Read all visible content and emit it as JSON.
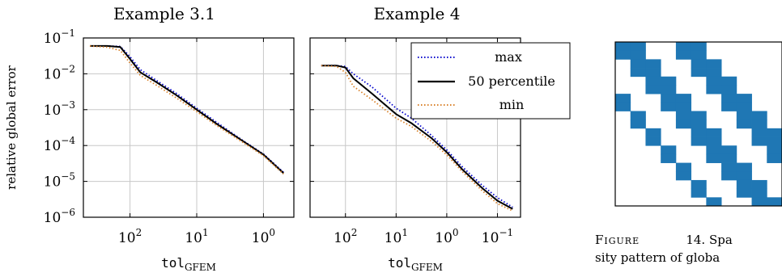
{
  "chart_data": [
    {
      "type": "line",
      "title": "Example 3.1",
      "xlabel": "tol",
      "xlabel_sub": "GFEM",
      "ylabel": "relative global error",
      "x_scale": "log",
      "x_reversed": true,
      "y_scale": "log",
      "xlim": [
        500,
        0.35
      ],
      "ylim": [
        1e-06,
        0.1
      ],
      "x_ticks": [
        {
          "value": 100,
          "base": "10",
          "exp": "2"
        },
        {
          "value": 10,
          "base": "10",
          "exp": "1"
        },
        {
          "value": 1,
          "base": "10",
          "exp": "0"
        }
      ],
      "y_ticks": [
        {
          "value": 0.1,
          "base": "10",
          "exp": "−1"
        },
        {
          "value": 0.01,
          "base": "10",
          "exp": "−2"
        },
        {
          "value": 0.001,
          "base": "10",
          "exp": "−3"
        },
        {
          "value": 0.0001,
          "base": "10",
          "exp": "−4"
        },
        {
          "value": 1e-05,
          "base": "10",
          "exp": "−5"
        },
        {
          "value": 1e-06,
          "base": "10",
          "exp": "−6"
        }
      ],
      "grid": true,
      "series": [
        {
          "name": "max",
          "color": "#0000cc",
          "style": "dotted",
          "x": [
            400,
            220,
            140,
            100,
            70,
            40,
            20,
            10,
            5,
            2,
            1,
            0.5
          ],
          "y": [
            0.06,
            0.06,
            0.058,
            0.03,
            0.013,
            0.0065,
            0.0028,
            0.0011,
            0.00044,
            0.000135,
            5.8e-05,
            1.8e-05
          ]
        },
        {
          "name": "50 percentile",
          "color": "#000000",
          "style": "solid",
          "x": [
            400,
            220,
            140,
            100,
            70,
            40,
            20,
            10,
            5,
            2,
            1,
            0.5
          ],
          "y": [
            0.06,
            0.06,
            0.056,
            0.026,
            0.011,
            0.0058,
            0.0025,
            0.001,
            0.0004,
            0.00013,
            5.6e-05,
            1.7e-05
          ]
        },
        {
          "name": "min",
          "color": "#d9822b",
          "style": "dotted",
          "x": [
            400,
            220,
            140,
            100,
            70,
            40,
            20,
            10,
            5,
            2,
            1,
            0.5
          ],
          "y": [
            0.06,
            0.055,
            0.045,
            0.02,
            0.009,
            0.0048,
            0.0021,
            0.00088,
            0.00036,
            0.00012,
            5.2e-05,
            1.6e-05
          ]
        }
      ]
    },
    {
      "type": "line",
      "title": "Example 4",
      "xlabel": "tol",
      "xlabel_sub": "GFEM",
      "x_scale": "log",
      "x_reversed": true,
      "y_scale": "log",
      "xlim": [
        500,
        0.035
      ],
      "ylim": [
        1e-06,
        0.1
      ],
      "x_ticks": [
        {
          "value": 100,
          "base": "10",
          "exp": "2"
        },
        {
          "value": 10,
          "base": "10",
          "exp": "1"
        },
        {
          "value": 1,
          "base": "10",
          "exp": "0"
        },
        {
          "value": 0.1,
          "base": "10",
          "exp": "−1"
        }
      ],
      "grid": true,
      "legend": {
        "position": "top-right",
        "entries": [
          "max",
          "50 percentile",
          "min"
        ]
      },
      "series": [
        {
          "name": "max",
          "color": "#0000cc",
          "style": "dotted",
          "x": [
            300,
            150,
            100,
            70,
            30,
            10,
            5,
            2,
            1,
            0.5,
            0.2,
            0.1,
            0.05
          ],
          "y": [
            0.017,
            0.017,
            0.016,
            0.01,
            0.0043,
            0.0011,
            0.00058,
            0.00019,
            7.5e-05,
            2.6e-05,
            7.8e-06,
            3.5e-06,
            1.9e-06
          ]
        },
        {
          "name": "50 percentile",
          "color": "#000000",
          "style": "solid",
          "x": [
            300,
            150,
            100,
            70,
            30,
            10,
            5,
            2,
            1,
            0.5,
            0.2,
            0.1,
            0.05
          ],
          "y": [
            0.017,
            0.017,
            0.015,
            0.0075,
            0.0028,
            0.00075,
            0.00042,
            0.00016,
            6.5e-05,
            2.2e-05,
            6.5e-06,
            2.9e-06,
            1.7e-06
          ]
        },
        {
          "name": "min",
          "color": "#d9822b",
          "style": "dotted",
          "x": [
            300,
            150,
            100,
            70,
            30,
            10,
            5,
            2,
            1,
            0.5,
            0.2,
            0.1,
            0.05
          ],
          "y": [
            0.017,
            0.016,
            0.011,
            0.0045,
            0.0019,
            0.00058,
            0.00034,
            0.00013,
            5.5e-05,
            1.9e-05,
            5.5e-06,
            2.4e-06,
            1.5e-06
          ]
        }
      ]
    }
  ],
  "sparsity": {
    "color": "#1f77b4",
    "rows": [
      "11001100000",
      "11001100000",
      "01100110000",
      "01100110000",
      "00110011000",
      "00110011000",
      "10011001100",
      "10011001100",
      "01001100110",
      "01001100110",
      "00100110011",
      "00100110011",
      "00010011001",
      "00010011001",
      "00001001100",
      "00001001100",
      "00000100110",
      "00000100110",
      "00000010011"
    ]
  },
  "caption": {
    "label": "Figure",
    "line1_rest": "14. Spa",
    "line2": "sity pattern of globa"
  }
}
